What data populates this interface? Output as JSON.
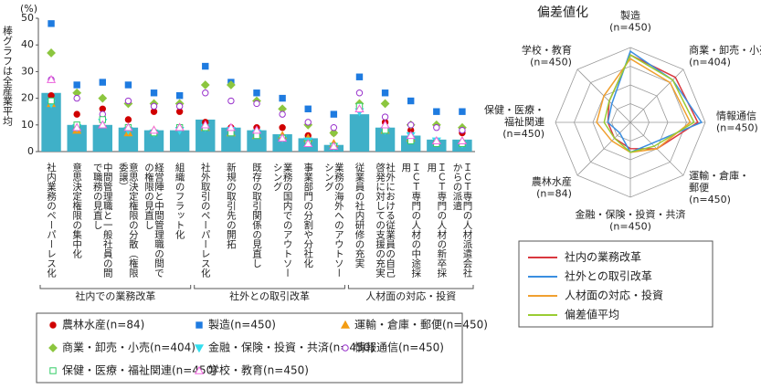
{
  "chart_data": [
    {
      "type": "bar",
      "y_unit": "(%)",
      "y_label": "棒グラフは全産業平均",
      "ylim": [
        0,
        50
      ],
      "yticks": [
        0,
        10,
        20,
        30,
        40,
        50
      ],
      "grid": false,
      "color": "#3fb0c8",
      "groups": [
        {
          "label": "社内での業務改革",
          "categories": [
            "社内業務のペーパーレス化",
            "意思決定権限の集中化",
            "中間管理職と一般社員の間で職務の見直し",
            "意思決定権限の分散（権限委譲）",
            "経営陣と中間管理職の間での権限の見直し",
            "組織のフラット化"
          ]
        },
        {
          "label": "社外との取引改革",
          "categories": [
            "社外取引のペーパーレス化",
            "新規の取引先の開拓",
            "既存の取引関係の見直し",
            "業務の国内でのアウトソーシング",
            "事業部門の分割や分社化",
            "業務の海外へのアウトソーシング"
          ]
        },
        {
          "label": "人材面の対応・投資",
          "categories": [
            "従業員の社内研修の充実",
            "社外における従業員の自己啓発に対しての支援の充実",
            "ＩＣＴ専門の人材の中途採用",
            "ＩＣＴ専門の人材の新卒採用",
            "ＩＣＴ専門の人材派遣会社からの派遣"
          ]
        }
      ],
      "values": [
        22,
        10,
        10,
        9,
        8,
        8,
        12,
        9,
        8,
        6.5,
        5,
        2.5,
        14,
        9,
        6,
        4.5,
        4.5
      ],
      "series": [
        {
          "name": "農林水産(n=84)",
          "color": "#d00000",
          "marker": "circle",
          "values": [
            21,
            14,
            16,
            12,
            15,
            15,
            11,
            9,
            9,
            9,
            6,
            7,
            17,
            11,
            8,
            4,
            7
          ]
        },
        {
          "name": "製造(n=450)",
          "color": "#1e7be0",
          "marker": "square",
          "values": [
            48,
            25,
            26,
            25,
            22,
            21,
            32,
            26,
            22,
            20,
            16,
            14,
            28,
            22,
            19,
            15,
            15
          ]
        },
        {
          "name": "運輸・倉庫・郵便(n=450)",
          "color": "#f39c12",
          "marker": "triangle",
          "values": [
            18,
            8,
            10,
            7,
            8,
            9,
            9,
            7,
            6,
            6,
            5,
            3,
            16,
            8,
            5,
            4,
            4
          ]
        },
        {
          "name": "商業・卸売・小売(n=404)",
          "color": "#8cc63f",
          "marker": "diamond",
          "values": [
            37,
            22,
            20,
            18,
            18,
            18,
            25,
            25,
            19,
            16,
            10,
            7,
            18,
            18,
            10,
            10,
            9
          ]
        },
        {
          "name": "金融・保険・投資・共済(n=450)",
          "color": "#33ddee",
          "marker": "down-triangle",
          "values": [
            18,
            9,
            11,
            8,
            7,
            8,
            9,
            8,
            7,
            5,
            4,
            2,
            15,
            8,
            6,
            4,
            3
          ]
        },
        {
          "name": "情報通信(n=450)",
          "color": "#9933cc",
          "marker": "open-circle",
          "values": [
            27,
            20,
            14,
            19,
            17,
            17,
            22,
            19,
            18,
            14,
            11,
            9,
            22,
            13,
            10,
            9,
            8
          ]
        },
        {
          "name": "保健・医療・福祉関連(n=450)",
          "color": "#33cc66",
          "marker": "open-square",
          "values": [
            19,
            10,
            12,
            9,
            7,
            9,
            9,
            7,
            6,
            5,
            3,
            2,
            17,
            8,
            4,
            3,
            3
          ]
        },
        {
          "name": "学校・教育(n=450)",
          "color": "#ee66dd",
          "marker": "open-triangle",
          "values": [
            27,
            9,
            10,
            9,
            8,
            9,
            10,
            9,
            8,
            5,
            3,
            2,
            16,
            10,
            6,
            4,
            4
          ]
        }
      ]
    },
    {
      "type": "radar",
      "title": "偏差値化",
      "axes": [
        [
          "製造",
          "(n=450)"
        ],
        [
          "商業・卸売・小売",
          "(n=404)"
        ],
        [
          "情報通信",
          "(n=450)"
        ],
        [
          "運輸・倉庫・",
          "郵便",
          "(n=450)"
        ],
        [
          "金融・保険・投資・共済",
          "(n=450)"
        ],
        [
          "農林水産",
          "(n=84)"
        ],
        [
          "保健・医療・",
          "福祉関連",
          "(n=450)"
        ],
        [
          "学校・教育",
          "(n=450)"
        ]
      ],
      "rlim": [
        40,
        60
      ],
      "rticks": [
        45,
        50,
        55,
        60
      ],
      "series": [
        {
          "name": "社内の業務改革",
          "color": "#d9383f",
          "values": [
            58,
            57,
            58,
            50,
            47,
            46,
            46,
            48
          ]
        },
        {
          "name": "社外との取引改革",
          "color": "#3a8ee0",
          "values": [
            59,
            56,
            59,
            48,
            48,
            44,
            46,
            47
          ]
        },
        {
          "name": "人材面の対応・投資",
          "color": "#f0a030",
          "values": [
            57,
            55,
            56,
            50,
            48,
            47,
            49,
            50
          ]
        },
        {
          "name": "偏差値平均",
          "color": "#99cc33",
          "values": [
            58,
            56,
            57,
            49,
            48,
            46,
            47,
            48
          ]
        }
      ]
    }
  ]
}
